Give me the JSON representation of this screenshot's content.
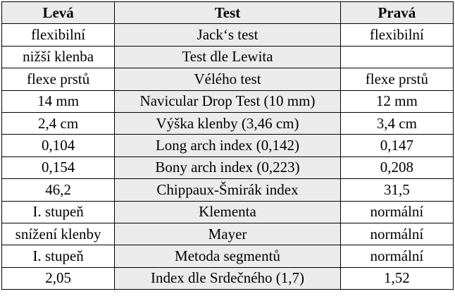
{
  "table": {
    "headers": {
      "left": "Levá",
      "test": "Test",
      "right": "Pravá"
    },
    "rows": [
      {
        "left": "flexibilní",
        "test": "Jack‘s test",
        "right": "flexibilní"
      },
      {
        "left": "nižší klenba",
        "test": "Test dle Lewita",
        "right": ""
      },
      {
        "left": "flexe prstů",
        "test": "Vélého test",
        "right": "flexe prstů"
      },
      {
        "left": "14 mm",
        "test": "Navicular Drop Test (10 mm)",
        "right": "12 mm"
      },
      {
        "left": "2,4 cm",
        "test": "Výška klenby (3,46 cm)",
        "right": "3,4 cm"
      },
      {
        "left": "0,104",
        "test": "Long arch index (0,142)",
        "right": "0,147"
      },
      {
        "left": "0,154",
        "test": "Bony arch index (0,223)",
        "right": "0,208"
      },
      {
        "left": "46,2",
        "test": "Chippaux-Šmirák index",
        "right": "31,5"
      },
      {
        "left": "I. stupeň",
        "test": "Klementa",
        "right": "normální"
      },
      {
        "left": "snížení klenby",
        "test": "Mayer",
        "right": "normální"
      },
      {
        "left": "I. stupeň",
        "test": "Metoda segmentů",
        "right": "normální"
      },
      {
        "left": "2,05",
        "test": "Index dle Srdečného (1,7)",
        "right": "1,52"
      }
    ]
  }
}
